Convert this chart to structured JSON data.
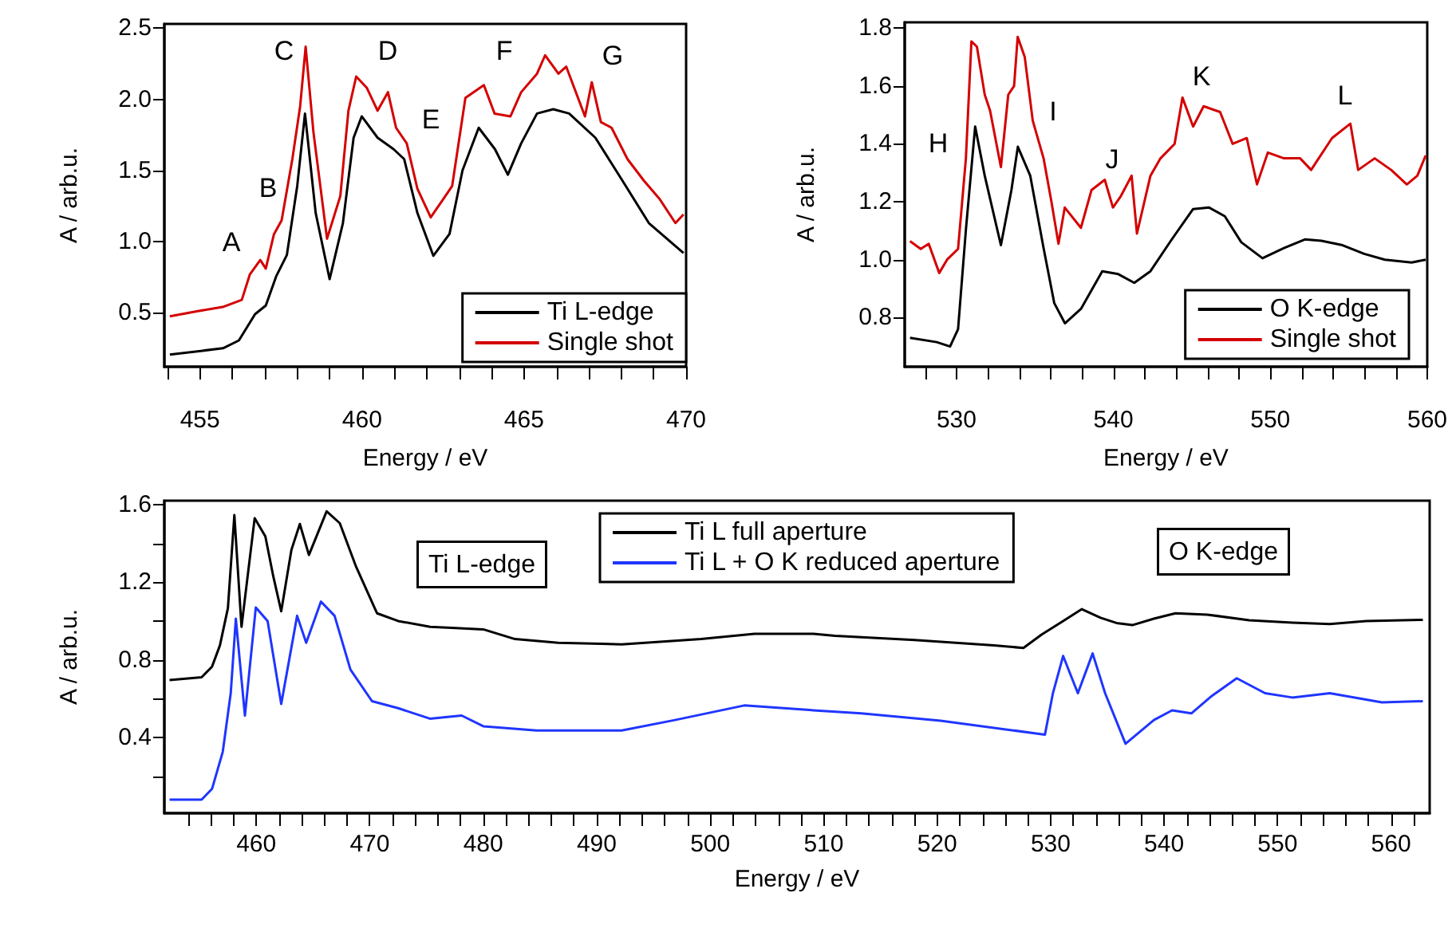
{
  "chart_data": [
    {
      "type": "line",
      "xlabel": "Energy / eV",
      "ylabel": "A / arb.u.",
      "xlim": [
        453.9,
        470
      ],
      "ylim": [
        0.12,
        2.53
      ],
      "xticks": [
        {
          "value": 454,
          "label": null
        },
        455,
        {
          "value": 456,
          "label": null
        },
        {
          "value": 457,
          "label": null
        },
        {
          "value": 458,
          "label": null
        },
        {
          "value": 459,
          "label": null
        },
        460,
        {
          "value": 461,
          "label": null
        },
        {
          "value": 462,
          "label": null
        },
        {
          "value": 463,
          "label": null
        },
        {
          "value": 464,
          "label": null
        },
        465,
        {
          "value": 466,
          "label": null
        },
        {
          "value": 467,
          "label": null
        },
        {
          "value": 468,
          "label": null
        },
        {
          "value": 469,
          "label": null
        },
        470
      ],
      "yticks": [
        0.5,
        {
          "value": 1,
          "label": "1.0"
        },
        1.5,
        {
          "value": 2,
          "label": "2.0"
        },
        2.5
      ],
      "grid": false,
      "legend": "bottom right",
      "marker": "none",
      "annotations": [
        "A",
        "B",
        "C",
        "D",
        "E",
        "F",
        "G"
      ],
      "series": [
        {
          "name": "Ti L-edge",
          "color": "#000000",
          "x": [
            454.07,
            455.71,
            456.2,
            456.7,
            457.03,
            457.35,
            457.68,
            458.0,
            458.24,
            458.57,
            459.0,
            459.41,
            459.74,
            459.99,
            460.48,
            460.97,
            461.3,
            461.71,
            462.2,
            462.7,
            463.1,
            463.6,
            464.1,
            464.5,
            464.91,
            465.4,
            465.9,
            466.39,
            467.2,
            468.03,
            468.85,
            469.92
          ],
          "values": [
            0.205,
            0.25,
            0.305,
            0.49,
            0.55,
            0.755,
            0.905,
            1.39,
            1.9,
            1.2,
            0.736,
            1.13,
            1.73,
            1.88,
            1.73,
            1.65,
            1.58,
            1.2,
            0.9,
            1.054,
            1.5,
            1.8,
            1.65,
            1.47,
            1.69,
            1.9,
            1.93,
            1.9,
            1.73,
            1.43,
            1.13,
            0.92
          ]
        },
        {
          "name": "Single shot",
          "color": "#d40000",
          "x": [
            454.07,
            454.9,
            455.7,
            456.29,
            456.54,
            456.86,
            457.03,
            457.28,
            457.52,
            457.85,
            458.09,
            458.26,
            458.5,
            458.92,
            459.33,
            459.58,
            459.82,
            460.15,
            460.48,
            460.8,
            461.05,
            461.38,
            461.71,
            462.12,
            462.45,
            462.78,
            463.19,
            463.76,
            464.09,
            464.58,
            464.91,
            465.4,
            465.65,
            466.06,
            466.3,
            466.88,
            467.09,
            467.37,
            467.7,
            468.19,
            468.69,
            469.18,
            469.67,
            469.92
          ],
          "values": [
            0.474,
            0.51,
            0.54,
            0.59,
            0.77,
            0.87,
            0.81,
            1.05,
            1.15,
            1.58,
            1.95,
            2.37,
            1.77,
            1.02,
            1.32,
            1.92,
            2.16,
            2.08,
            1.92,
            2.05,
            1.8,
            1.69,
            1.37,
            1.17,
            1.28,
            1.39,
            2.01,
            2.1,
            1.9,
            1.88,
            2.05,
            2.18,
            2.31,
            2.18,
            2.23,
            1.88,
            2.12,
            1.84,
            1.8,
            1.58,
            1.43,
            1.3,
            1.13,
            1.19
          ]
        }
      ]
    },
    {
      "type": "line",
      "xlabel": "Energy / eV",
      "ylabel": "A / arb.u.",
      "xlim": [
        526.7,
        560
      ],
      "ylim": [
        0.63,
        1.82
      ],
      "xticks": [
        {
          "value": 528,
          "label": null
        },
        530,
        {
          "value": 532,
          "label": null
        },
        {
          "value": 534,
          "label": null
        },
        {
          "value": 536,
          "label": null
        },
        {
          "value": 538,
          "label": null
        },
        540,
        {
          "value": 542,
          "label": null
        },
        {
          "value": 544,
          "label": null
        },
        {
          "value": 546,
          "label": null
        },
        {
          "value": 548,
          "label": null
        },
        550,
        {
          "value": 552,
          "label": null
        },
        {
          "value": 554,
          "label": null
        },
        {
          "value": 556,
          "label": null
        },
        {
          "value": 558,
          "label": null
        },
        560
      ],
      "yticks": [
        0.8,
        {
          "value": 1,
          "label": "1.0"
        },
        1.2,
        1.4,
        1.6,
        1.8
      ],
      "grid": false,
      "legend": "bottom right",
      "marker": "none",
      "annotations": [
        "H",
        "I",
        "J",
        "K",
        "L"
      ],
      "series": [
        {
          "name": "O K-edge",
          "color": "#000000",
          "x": [
            527.04,
            528.74,
            529.59,
            530.1,
            530.61,
            531.19,
            531.8,
            532.83,
            533.5,
            533.91,
            534.7,
            535.55,
            536.23,
            536.91,
            537.93,
            539.29,
            540.31,
            541.33,
            542.36,
            543.72,
            545.08,
            546.1,
            547.1,
            548.15,
            549.5,
            550.87,
            552.2,
            553.25,
            554.6,
            555.98,
            557.3,
            559.0,
            559.9
          ],
          "values": [
            0.73,
            0.715,
            0.7,
            0.76,
            1.11,
            1.46,
            1.29,
            1.05,
            1.24,
            1.39,
            1.29,
            1.04,
            0.85,
            0.78,
            0.83,
            0.96,
            0.95,
            0.92,
            0.96,
            1.07,
            1.175,
            1.18,
            1.15,
            1.06,
            1.005,
            1.04,
            1.07,
            1.065,
            1.05,
            1.02,
            1.0,
            0.99,
            1.0
          ]
        },
        {
          "name": "Single shot",
          "color": "#d40000",
          "x": [
            527.04,
            527.72,
            528.23,
            528.9,
            529.4,
            530.1,
            530.6,
            530.95,
            531.3,
            531.8,
            532.14,
            532.83,
            533.3,
            533.67,
            533.9,
            534.35,
            534.86,
            535.55,
            536.05,
            536.5,
            536.9,
            537.93,
            538.6,
            539.45,
            539.97,
            540.48,
            541.16,
            541.5,
            542.36,
            543.0,
            543.9,
            544.4,
            545.08,
            545.75,
            546.8,
            547.6,
            548.5,
            549.15,
            549.84,
            550.87,
            551.9,
            552.6,
            553.93,
            555.1,
            555.6,
            556.65,
            557.7,
            558.7,
            559.37,
            559.9
          ],
          "values": [
            1.064,
            1.037,
            1.055,
            0.954,
            1.0,
            1.037,
            1.35,
            1.754,
            1.736,
            1.57,
            1.515,
            1.32,
            1.57,
            1.6,
            1.77,
            1.7,
            1.48,
            1.35,
            1.2,
            1.055,
            1.18,
            1.11,
            1.24,
            1.276,
            1.18,
            1.22,
            1.29,
            1.09,
            1.29,
            1.35,
            1.4,
            1.56,
            1.46,
            1.53,
            1.51,
            1.4,
            1.42,
            1.26,
            1.37,
            1.35,
            1.35,
            1.31,
            1.42,
            1.47,
            1.31,
            1.35,
            1.31,
            1.26,
            1.29,
            1.36
          ]
        }
      ]
    },
    {
      "type": "line",
      "xlabel": "Energy / eV",
      "ylabel": "A / arb.u.",
      "xlim": [
        451.9,
        563.4
      ],
      "ylim": [
        0.01,
        1.62
      ],
      "xticks": [
        {
          "value": 454,
          "label": null
        },
        {
          "value": 456,
          "label": null
        },
        {
          "value": 458,
          "label": null
        },
        460,
        {
          "value": 462,
          "label": null
        },
        {
          "value": 464,
          "label": null
        },
        {
          "value": 466,
          "label": null
        },
        {
          "value": 468,
          "label": null
        },
        470,
        {
          "value": 472,
          "label": null
        },
        {
          "value": 474,
          "label": null
        },
        {
          "value": 476,
          "label": null
        },
        {
          "value": 478,
          "label": null
        },
        480,
        {
          "value": 482,
          "label": null
        },
        {
          "value": 484,
          "label": null
        },
        {
          "value": 486,
          "label": null
        },
        {
          "value": 488,
          "label": null
        },
        490,
        {
          "value": 492,
          "label": null
        },
        {
          "value": 494,
          "label": null
        },
        {
          "value": 496,
          "label": null
        },
        {
          "value": 498,
          "label": null
        },
        500,
        {
          "value": 502,
          "label": null
        },
        {
          "value": 504,
          "label": null
        },
        {
          "value": 506,
          "label": null
        },
        {
          "value": 508,
          "label": null
        },
        510,
        {
          "value": 512,
          "label": null
        },
        {
          "value": 514,
          "label": null
        },
        {
          "value": 516,
          "label": null
        },
        {
          "value": 518,
          "label": null
        },
        520,
        {
          "value": 522,
          "label": null
        },
        {
          "value": 524,
          "label": null
        },
        {
          "value": 526,
          "label": null
        },
        {
          "value": 528,
          "label": null
        },
        530,
        {
          "value": 532,
          "label": null
        },
        {
          "value": 534,
          "label": null
        },
        {
          "value": 536,
          "label": null
        },
        {
          "value": 538,
          "label": null
        },
        540,
        {
          "value": 542,
          "label": null
        },
        {
          "value": 544,
          "label": null
        },
        {
          "value": 546,
          "label": null
        },
        {
          "value": 548,
          "label": null
        },
        550,
        {
          "value": 552,
          "label": null
        },
        {
          "value": 554,
          "label": null
        },
        {
          "value": 556,
          "label": null
        },
        {
          "value": 558,
          "label": null
        },
        560,
        {
          "value": 562,
          "label": null
        }
      ],
      "yticks": [
        {
          "value": 0.2,
          "label": null
        },
        0.4,
        {
          "value": 0.6,
          "label": null
        },
        0.8,
        {
          "value": 1,
          "label": null
        },
        1.2,
        {
          "value": 1.4,
          "label": null
        },
        1.6
      ],
      "grid": false,
      "legend": "top",
      "marker": "none",
      "annotations": [
        "Ti L-edge",
        "O K-edge"
      ],
      "series": [
        {
          "name": "Ti L full aperture",
          "color": "#000000",
          "x": [
            452.36,
            455.18,
            456.1,
            456.8,
            457.5,
            458.07,
            458.7,
            459.86,
            460.8,
            461.5,
            462.2,
            463.1,
            463.84,
            464.64,
            466.2,
            467.36,
            468.76,
            470.64,
            472.5,
            475.33,
            477.2,
            480.0,
            482.8,
            486.6,
            492.2,
            499.2,
            503.9,
            509.1,
            511.0,
            518.0,
            525.0,
            527.6,
            529.2,
            531.1,
            532.75,
            534.4,
            535.8,
            537.2,
            539.1,
            541.0,
            543.8,
            547.5,
            551.3,
            554.6,
            557.8,
            562.8
          ],
          "values": [
            0.696,
            0.71,
            0.765,
            0.875,
            1.066,
            1.546,
            0.97,
            1.53,
            1.436,
            1.23,
            1.05,
            1.367,
            1.5,
            1.34,
            1.565,
            1.504,
            1.285,
            1.04,
            1.0,
            0.97,
            0.965,
            0.957,
            0.907,
            0.888,
            0.88,
            0.907,
            0.934,
            0.934,
            0.924,
            0.902,
            0.875,
            0.861,
            0.93,
            1.0,
            1.061,
            1.017,
            0.99,
            0.979,
            1.012,
            1.04,
            1.033,
            1.004,
            0.992,
            0.984,
            1.0,
            1.006
          ]
        },
        {
          "name": "Ti L + O K reduced aperture",
          "color": "#1f35ff",
          "x": [
            452.36,
            455.18,
            456.1,
            457.05,
            457.75,
            458.2,
            459.0,
            459.96,
            461.0,
            462.2,
            463.6,
            464.4,
            465.7,
            466.9,
            468.3,
            470.2,
            472.5,
            475.3,
            478.1,
            480.0,
            484.7,
            492.2,
            496.9,
            503.0,
            509.1,
            513.3,
            520.3,
            529.5,
            530.2,
            531.1,
            532.4,
            533.7,
            534.8,
            536.6,
            539.1,
            540.7,
            542.4,
            544.2,
            546.4,
            548.9,
            551.3,
            554.6,
            559.2,
            562.8
          ],
          "values": [
            0.08,
            0.08,
            0.135,
            0.327,
            0.628,
            1.012,
            0.513,
            1.07,
            1.0,
            0.573,
            1.027,
            0.888,
            1.1,
            1.027,
            0.75,
            0.587,
            0.551,
            0.497,
            0.513,
            0.458,
            0.436,
            0.436,
            0.49,
            0.565,
            0.54,
            0.524,
            0.486,
            0.415,
            0.628,
            0.82,
            0.628,
            0.833,
            0.628,
            0.368,
            0.49,
            0.54,
            0.524,
            0.614,
            0.705,
            0.628,
            0.606,
            0.628,
            0.581,
            0.587
          ]
        }
      ]
    }
  ]
}
